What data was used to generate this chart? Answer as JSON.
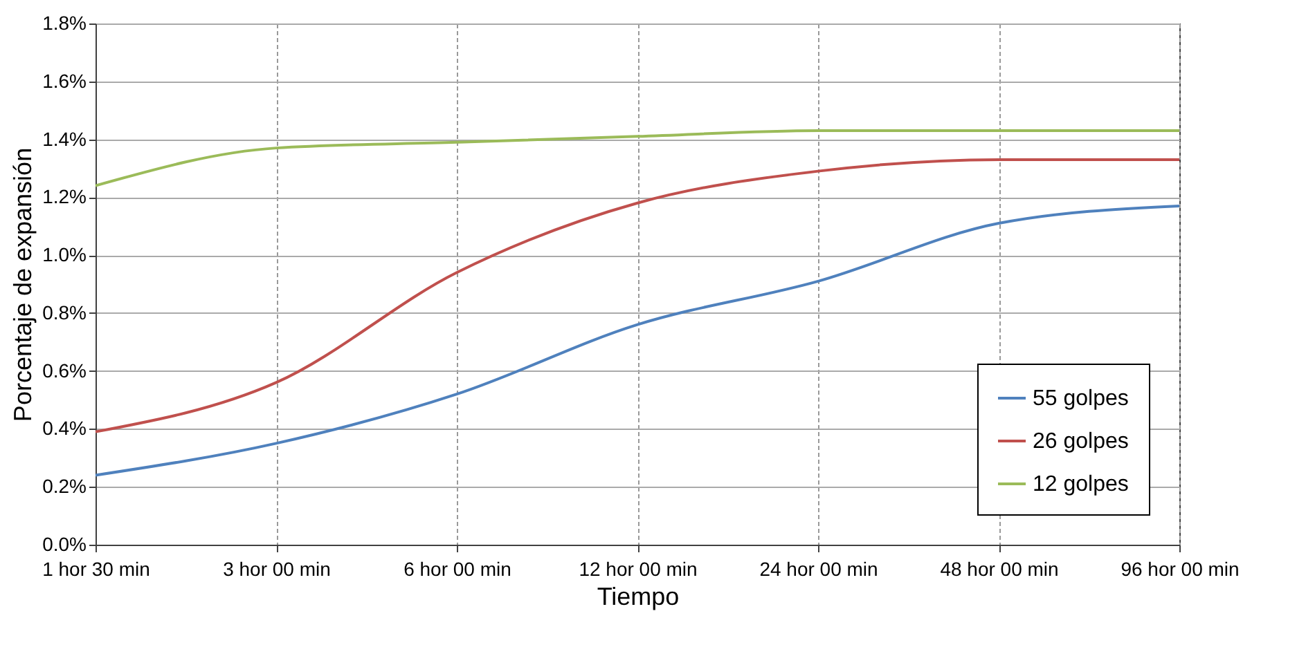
{
  "chart_data": {
    "type": "line",
    "xlabel": "Tiempo",
    "ylabel": "Porcentaje de expansión",
    "categories": [
      "1 hor 30 min",
      "3 hor 00 min",
      "6 hor 00 min",
      "12 hor 00 min",
      "24 hor 00 min",
      "48 hor 00 min",
      "96 hor 00 min"
    ],
    "series": [
      {
        "name": "55 golpes",
        "color": "#4f81bd",
        "values": [
          0.24,
          0.35,
          0.52,
          0.76,
          0.91,
          1.11,
          1.17
        ]
      },
      {
        "name": "26 golpes",
        "color": "#c0504d",
        "values": [
          0.39,
          0.56,
          0.94,
          1.18,
          1.29,
          1.33,
          1.33
        ]
      },
      {
        "name": "12 golpes",
        "color": "#9bbb59",
        "values": [
          1.24,
          1.37,
          1.39,
          1.41,
          1.43,
          1.43,
          1.43
        ]
      }
    ],
    "ylim": [
      0,
      1.8
    ],
    "yticks": [
      {
        "value": 0,
        "label": "0.0%"
      },
      {
        "value": 0.2,
        "label": "0.2%"
      },
      {
        "value": 0.4,
        "label": "0.4%"
      },
      {
        "value": 0.6,
        "label": "0.6%"
      },
      {
        "value": 0.8,
        "label": "0.8%"
      },
      {
        "value": 1.0,
        "label": "1.0%"
      },
      {
        "value": 1.2,
        "label": "1.2%"
      },
      {
        "value": 1.4,
        "label": "1.4%"
      },
      {
        "value": 1.6,
        "label": "1.6%"
      },
      {
        "value": 1.8,
        "label": "1.8%"
      }
    ],
    "grid": true,
    "legend": "bottom right",
    "marker": "none",
    "line_style": "solid"
  }
}
